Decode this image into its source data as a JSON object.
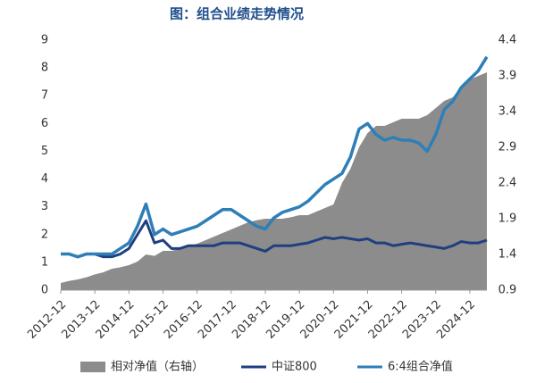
{
  "chart_data": {
    "type": "line",
    "title": "图：组合业绩走势情况",
    "x": [
      "2012-12",
      "2013-03",
      "2013-06",
      "2013-09",
      "2013-12",
      "2014-03",
      "2014-06",
      "2014-09",
      "2014-12",
      "2015-03",
      "2015-06",
      "2015-09",
      "2015-12",
      "2016-03",
      "2016-06",
      "2016-09",
      "2016-12",
      "2017-03",
      "2017-06",
      "2017-09",
      "2017-12",
      "2018-03",
      "2018-06",
      "2018-09",
      "2018-12",
      "2019-03",
      "2019-06",
      "2019-09",
      "2019-12",
      "2020-03",
      "2020-06",
      "2020-09",
      "2020-12",
      "2021-03",
      "2021-06",
      "2021-09",
      "2021-12",
      "2022-03",
      "2022-06",
      "2022-09",
      "2022-12",
      "2023-03",
      "2023-06",
      "2023-09",
      "2023-12",
      "2024-03",
      "2024-06",
      "2024-09",
      "2024-12",
      "2025-03",
      "2025-06"
    ],
    "xlim": [
      "2012-12",
      "2025-06"
    ],
    "xticks": [
      "2012-12",
      "2013-12",
      "2014-12",
      "2015-12",
      "2016-12",
      "2017-12",
      "2018-12",
      "2019-12",
      "2020-12",
      "2021-12",
      "2022-12",
      "2023-12",
      "2024-12"
    ],
    "ylim": [
      0,
      9
    ],
    "yticks": [
      0,
      1,
      2,
      3,
      4,
      5,
      6,
      7,
      8,
      9
    ],
    "y2lim": [
      0.9,
      4.4
    ],
    "y2ticks": [
      0.9,
      1.4,
      1.9,
      2.4,
      2.9,
      3.4,
      3.9,
      4.4
    ],
    "legend": "bottom",
    "series": [
      {
        "name": "相对净值（右轴）",
        "type": "area",
        "axis": "y2",
        "color": "#8c8c8c",
        "values": [
          1.0,
          1.03,
          1.05,
          1.08,
          1.12,
          1.15,
          1.2,
          1.22,
          1.25,
          1.3,
          1.4,
          1.38,
          1.45,
          1.45,
          1.48,
          1.52,
          1.55,
          1.6,
          1.65,
          1.7,
          1.75,
          1.8,
          1.85,
          1.88,
          1.9,
          1.9,
          1.9,
          1.92,
          1.95,
          1.95,
          2.0,
          2.05,
          2.1,
          2.4,
          2.6,
          2.9,
          3.1,
          3.2,
          3.2,
          3.25,
          3.3,
          3.3,
          3.3,
          3.35,
          3.45,
          3.55,
          3.6,
          3.75,
          3.85,
          3.9,
          3.95
        ]
      },
      {
        "name": "中证800",
        "type": "line",
        "color": "#1f3f7f",
        "values": [
          1.3,
          1.3,
          1.2,
          1.3,
          1.3,
          1.2,
          1.2,
          1.3,
          1.5,
          2.0,
          2.5,
          1.7,
          1.8,
          1.5,
          1.5,
          1.6,
          1.6,
          1.6,
          1.6,
          1.7,
          1.7,
          1.7,
          1.6,
          1.5,
          1.4,
          1.6,
          1.6,
          1.6,
          1.65,
          1.7,
          1.8,
          1.9,
          1.85,
          1.9,
          1.85,
          1.8,
          1.85,
          1.7,
          1.7,
          1.6,
          1.65,
          1.7,
          1.65,
          1.6,
          1.55,
          1.5,
          1.6,
          1.75,
          1.7,
          1.7,
          1.8
        ]
      },
      {
        "name": "6:4组合净值",
        "type": "line",
        "color": "#2e7fb8",
        "values": [
          1.3,
          1.3,
          1.2,
          1.3,
          1.3,
          1.3,
          1.3,
          1.5,
          1.7,
          2.3,
          3.1,
          2.0,
          2.2,
          2.0,
          2.1,
          2.2,
          2.3,
          2.5,
          2.7,
          2.9,
          2.9,
          2.7,
          2.5,
          2.3,
          2.2,
          2.6,
          2.8,
          2.9,
          3.0,
          3.2,
          3.5,
          3.8,
          4.0,
          4.2,
          4.8,
          5.8,
          6.0,
          5.6,
          5.4,
          5.5,
          5.4,
          5.4,
          5.3,
          5.0,
          5.6,
          6.5,
          6.8,
          7.3,
          7.6,
          7.9,
          8.4
        ]
      }
    ]
  }
}
